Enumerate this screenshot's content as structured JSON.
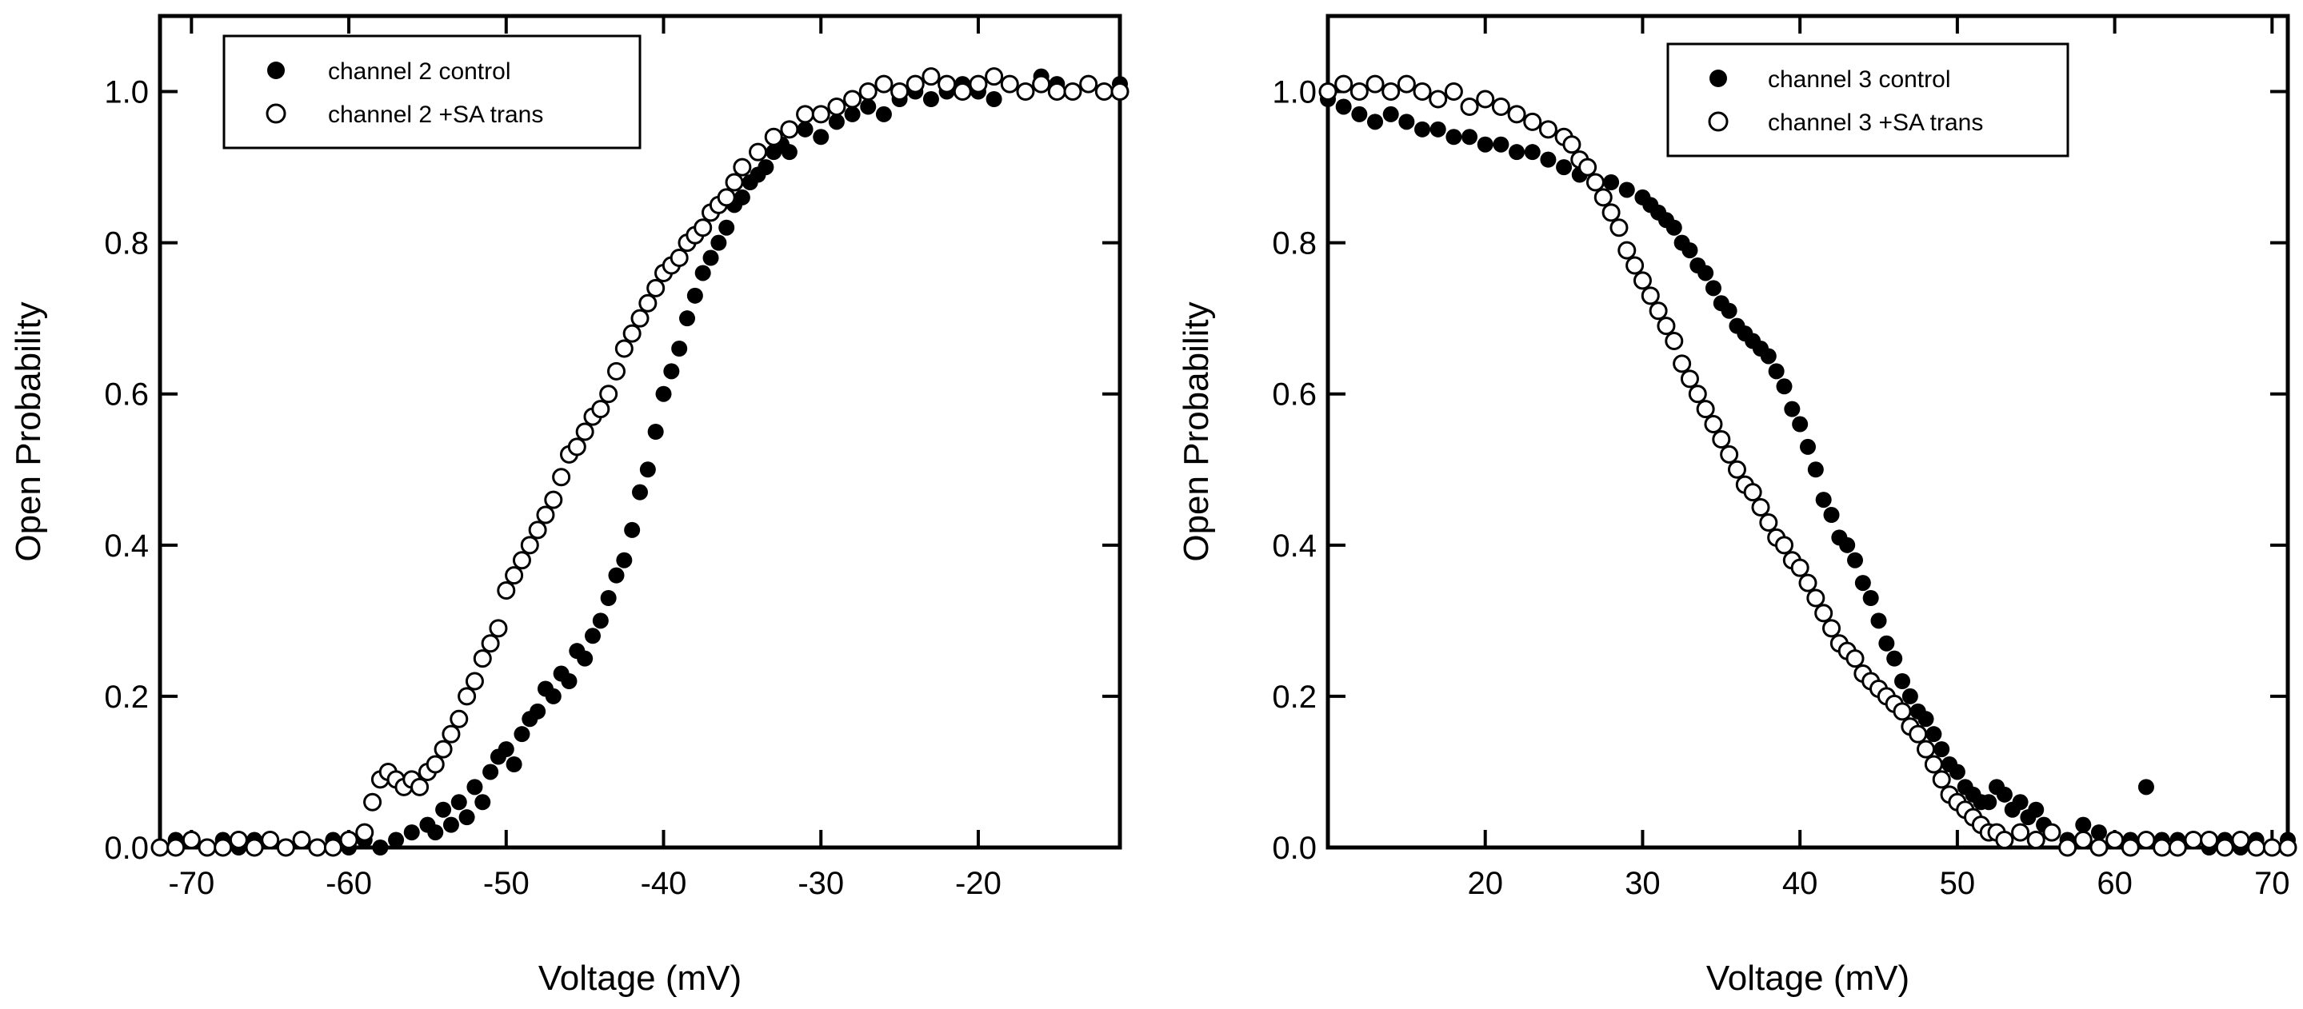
{
  "chart_data": [
    {
      "type": "scatter",
      "xlabel": "Voltage (mV)",
      "ylabel": "Open Probability",
      "xlim": [
        -72,
        -11
      ],
      "ylim": [
        0,
        1.1
      ],
      "xticks": [
        -70,
        -60,
        -50,
        -40,
        -30,
        -20
      ],
      "yticks": [
        0.0,
        0.2,
        0.4,
        0.6,
        0.8,
        1.0
      ],
      "xtick_labels": [
        "-70",
        "-60",
        "-50",
        "-40",
        "-30",
        "-20"
      ],
      "ytick_labels": [
        "0.0",
        "0.2",
        "0.4",
        "0.6",
        "0.8",
        "1.0"
      ],
      "grid": false,
      "legend_position": "top-left",
      "series": [
        {
          "name": "channel 2 control",
          "marker": "filled-circle",
          "color": "#000000",
          "x": [
            -72,
            -71,
            -70,
            -69,
            -68,
            -67,
            -66,
            -65,
            -64,
            -63,
            -62,
            -61,
            -60,
            -59,
            -58,
            -57,
            -56,
            -55,
            -54.5,
            -54,
            -53.5,
            -53,
            -52.5,
            -52,
            -51.5,
            -51,
            -50.5,
            -50,
            -49.5,
            -49,
            -48.5,
            -48,
            -47.5,
            -47,
            -46.5,
            -46,
            -45.5,
            -45,
            -44.5,
            -44,
            -43.5,
            -43,
            -42.5,
            -42,
            -41.5,
            -41,
            -40.5,
            -40,
            -39.5,
            -39,
            -38.5,
            -38,
            -37.5,
            -37,
            -36.5,
            -36,
            -35.5,
            -35,
            -34.5,
            -34,
            -33.5,
            -33,
            -32.5,
            -32,
            -31,
            -30,
            -29,
            -28,
            -27,
            -26,
            -25,
            -24,
            -23,
            -22,
            -21,
            -20,
            -19,
            -18,
            -17,
            -16,
            -15,
            -14,
            -13,
            -12,
            -11
          ],
          "values": [
            0.0,
            0.01,
            0.01,
            0.0,
            0.01,
            0.0,
            0.01,
            0.01,
            0.0,
            0.01,
            0.0,
            0.01,
            0.0,
            0.01,
            0.0,
            0.01,
            0.02,
            0.03,
            0.02,
            0.05,
            0.03,
            0.06,
            0.04,
            0.08,
            0.06,
            0.1,
            0.12,
            0.13,
            0.11,
            0.15,
            0.17,
            0.18,
            0.21,
            0.2,
            0.23,
            0.22,
            0.26,
            0.25,
            0.28,
            0.3,
            0.33,
            0.36,
            0.38,
            0.42,
            0.47,
            0.5,
            0.55,
            0.6,
            0.63,
            0.66,
            0.7,
            0.73,
            0.76,
            0.78,
            0.8,
            0.82,
            0.85,
            0.86,
            0.88,
            0.89,
            0.9,
            0.92,
            0.93,
            0.92,
            0.95,
            0.94,
            0.96,
            0.97,
            0.98,
            0.97,
            0.99,
            1.0,
            0.99,
            1.0,
            1.01,
            1.0,
            0.99,
            1.01,
            1.0,
            1.02,
            1.01,
            1.0,
            1.01,
            1.0,
            1.01
          ]
        },
        {
          "name": "channel 2 +SA trans",
          "marker": "open-circle",
          "color": "#000000",
          "x": [
            -72,
            -71,
            -70,
            -69,
            -68,
            -67,
            -66,
            -65,
            -64,
            -63,
            -62,
            -61,
            -60,
            -59,
            -58.5,
            -58,
            -57.5,
            -57,
            -56.5,
            -56,
            -55.5,
            -55,
            -54.5,
            -54,
            -53.5,
            -53,
            -52.5,
            -52,
            -51.5,
            -51,
            -50.5,
            -50,
            -49.5,
            -49,
            -48.5,
            -48,
            -47.5,
            -47,
            -46.5,
            -46,
            -45.5,
            -45,
            -44.5,
            -44,
            -43.5,
            -43,
            -42.5,
            -42,
            -41.5,
            -41,
            -40.5,
            -40,
            -39.5,
            -39,
            -38.5,
            -38,
            -37.5,
            -37,
            -36.5,
            -36,
            -35.5,
            -35,
            -34,
            -33,
            -32,
            -31,
            -30,
            -29,
            -28,
            -27,
            -26,
            -25,
            -24,
            -23,
            -22,
            -21,
            -20,
            -19,
            -18,
            -17,
            -16,
            -15,
            -14,
            -13,
            -12,
            -11
          ],
          "values": [
            0.0,
            0.0,
            0.01,
            0.0,
            0.0,
            0.01,
            0.0,
            0.01,
            0.0,
            0.01,
            0.0,
            0.0,
            0.01,
            0.02,
            0.06,
            0.09,
            0.1,
            0.09,
            0.08,
            0.09,
            0.08,
            0.1,
            0.11,
            0.13,
            0.15,
            0.17,
            0.2,
            0.22,
            0.25,
            0.27,
            0.29,
            0.34,
            0.36,
            0.38,
            0.4,
            0.42,
            0.44,
            0.46,
            0.49,
            0.52,
            0.53,
            0.55,
            0.57,
            0.58,
            0.6,
            0.63,
            0.66,
            0.68,
            0.7,
            0.72,
            0.74,
            0.76,
            0.77,
            0.78,
            0.8,
            0.81,
            0.82,
            0.84,
            0.85,
            0.86,
            0.88,
            0.9,
            0.92,
            0.94,
            0.95,
            0.97,
            0.97,
            0.98,
            0.99,
            1.0,
            1.01,
            1.0,
            1.01,
            1.02,
            1.01,
            1.0,
            1.01,
            1.02,
            1.01,
            1.0,
            1.01,
            1.0,
            1.0,
            1.01,
            1.0,
            1.0
          ]
        }
      ]
    },
    {
      "type": "scatter",
      "xlabel": "Voltage (mV)",
      "ylabel": "Open Probability",
      "xlim": [
        10,
        71
      ],
      "ylim": [
        0,
        1.1
      ],
      "xticks": [
        20,
        30,
        40,
        50,
        60,
        70
      ],
      "yticks": [
        0.0,
        0.2,
        0.4,
        0.6,
        0.8,
        1.0
      ],
      "xtick_labels": [
        "20",
        "30",
        "40",
        "50",
        "60",
        "70"
      ],
      "ytick_labels": [
        "0.0",
        "0.2",
        "0.4",
        "0.6",
        "0.8",
        "1.0"
      ],
      "grid": false,
      "legend_position": "top-right",
      "series": [
        {
          "name": "channel 3 control",
          "marker": "filled-circle",
          "color": "#000000",
          "x": [
            10,
            11,
            12,
            13,
            14,
            15,
            16,
            17,
            18,
            19,
            20,
            21,
            22,
            23,
            24,
            25,
            26,
            27,
            28,
            29,
            30,
            30.5,
            31,
            31.5,
            32,
            32.5,
            33,
            33.5,
            34,
            34.5,
            35,
            35.5,
            36,
            36.5,
            37,
            37.5,
            38,
            38.5,
            39,
            39.5,
            40,
            40.5,
            41,
            41.5,
            42,
            42.5,
            43,
            43.5,
            44,
            44.5,
            45,
            45.5,
            46,
            46.5,
            47,
            47.5,
            48,
            48.5,
            49,
            49.5,
            50,
            50.5,
            51,
            51.5,
            52,
            52.5,
            53,
            53.5,
            54,
            54.5,
            55,
            55.5,
            56,
            57,
            58,
            59,
            60,
            61,
            62,
            63,
            64,
            65,
            66,
            67,
            68,
            69,
            70,
            71
          ],
          "values": [
            0.99,
            0.98,
            0.97,
            0.96,
            0.97,
            0.96,
            0.95,
            0.95,
            0.94,
            0.94,
            0.93,
            0.93,
            0.92,
            0.92,
            0.91,
            0.9,
            0.89,
            0.88,
            0.88,
            0.87,
            0.86,
            0.85,
            0.84,
            0.83,
            0.82,
            0.8,
            0.79,
            0.77,
            0.76,
            0.74,
            0.72,
            0.71,
            0.69,
            0.68,
            0.67,
            0.66,
            0.65,
            0.63,
            0.61,
            0.58,
            0.56,
            0.53,
            0.5,
            0.46,
            0.44,
            0.41,
            0.4,
            0.38,
            0.35,
            0.33,
            0.3,
            0.27,
            0.25,
            0.22,
            0.2,
            0.18,
            0.17,
            0.15,
            0.13,
            0.11,
            0.1,
            0.08,
            0.07,
            0.06,
            0.06,
            0.08,
            0.07,
            0.05,
            0.06,
            0.04,
            0.05,
            0.03,
            0.02,
            0.01,
            0.03,
            0.02,
            0.01,
            0.01,
            0.08,
            0.01,
            0.01,
            0.01,
            0.0,
            0.01,
            0.0,
            0.01,
            0.0,
            0.01
          ]
        },
        {
          "name": "channel 3 +SA trans",
          "marker": "open-circle",
          "color": "#000000",
          "x": [
            10,
            11,
            12,
            13,
            14,
            15,
            16,
            17,
            18,
            19,
            20,
            21,
            22,
            23,
            24,
            25,
            25.5,
            26,
            26.5,
            27,
            27.5,
            28,
            28.5,
            29,
            29.5,
            30,
            30.5,
            31,
            31.5,
            32,
            32.5,
            33,
            33.5,
            34,
            34.5,
            35,
            35.5,
            36,
            36.5,
            37,
            37.5,
            38,
            38.5,
            39,
            39.5,
            40,
            40.5,
            41,
            41.5,
            42,
            42.5,
            43,
            43.5,
            44,
            44.5,
            45,
            45.5,
            46,
            46.5,
            47,
            47.5,
            48,
            48.5,
            49,
            49.5,
            50,
            50.5,
            51,
            51.5,
            52,
            52.5,
            53,
            54,
            55,
            56,
            57,
            58,
            59,
            60,
            61,
            62,
            63,
            64,
            65,
            66,
            67,
            68,
            69,
            70,
            71
          ],
          "values": [
            1.0,
            1.01,
            1.0,
            1.01,
            1.0,
            1.01,
            1.0,
            0.99,
            1.0,
            0.98,
            0.99,
            0.98,
            0.97,
            0.96,
            0.95,
            0.94,
            0.93,
            0.91,
            0.9,
            0.88,
            0.86,
            0.84,
            0.82,
            0.79,
            0.77,
            0.75,
            0.73,
            0.71,
            0.69,
            0.67,
            0.64,
            0.62,
            0.6,
            0.58,
            0.56,
            0.54,
            0.52,
            0.5,
            0.48,
            0.47,
            0.45,
            0.43,
            0.41,
            0.4,
            0.38,
            0.37,
            0.35,
            0.33,
            0.31,
            0.29,
            0.27,
            0.26,
            0.25,
            0.23,
            0.22,
            0.21,
            0.2,
            0.19,
            0.18,
            0.16,
            0.15,
            0.13,
            0.11,
            0.09,
            0.07,
            0.06,
            0.05,
            0.04,
            0.03,
            0.02,
            0.02,
            0.01,
            0.02,
            0.01,
            0.02,
            0.0,
            0.01,
            0.0,
            0.01,
            0.0,
            0.01,
            0.0,
            0.0,
            0.01,
            0.01,
            0.0,
            0.01,
            0.0,
            0.0,
            0.0
          ]
        }
      ]
    }
  ]
}
